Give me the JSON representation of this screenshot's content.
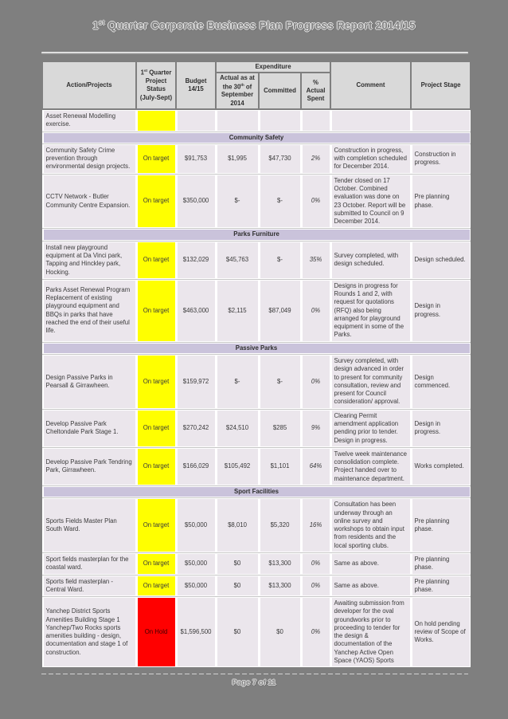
{
  "page": {
    "background": "#7F7F7F",
    "title": {
      "num": "1",
      "sup": "st",
      "rest": " Quarter Corporate Business Plan Progress Report 2014/15"
    },
    "footer": {
      "page_label": "Page 7 of 11"
    }
  },
  "colors": {
    "page_bg": "#7F7F7F",
    "header_cell_bg": "#D9D9D9",
    "row_bg": "#EBE6EC",
    "section_bg": "#CAC3DB",
    "on_target_bg": "#FFFF00",
    "on_hold_bg": "#FF0000"
  },
  "table": {
    "header": {
      "action": "Action/Projects",
      "status_num": "1",
      "status_sup": "st",
      "status_rest": " Quarter Project Status (July-Sept)",
      "budget": "Budget 14/15",
      "expenditure": "Expenditure",
      "actual_pre": "Actual as at the 30",
      "actual_sup": "th",
      "actual_rest": " of September 2014",
      "committed": "Committed",
      "pct": "% Actual Spent",
      "comment": "Comment",
      "stage": "Project Stage"
    },
    "rows": [
      {
        "type": "row",
        "action": "Asset Renewal Modelling exercise.",
        "status": "",
        "status_bg": "#FFFF00",
        "budget": "",
        "actual": "",
        "committed": "",
        "pct": "",
        "comment": "",
        "stage": ""
      },
      {
        "type": "section",
        "label": "Community Safety"
      },
      {
        "type": "row",
        "action": "Community Safety Crime prevention through environmental design projects.",
        "status": "On target",
        "status_bg": "#FFFF00",
        "budget": "$91,753",
        "actual": "$1,995",
        "committed": "$47,730",
        "pct": "2%",
        "comment": "Construction in progress, with completion scheduled for December 2014.",
        "stage": "Construction in progress."
      },
      {
        "type": "row",
        "action": "CCTV Network - Butler Community Centre Expansion.",
        "status": "On target",
        "status_bg": "#FFFF00",
        "budget": "$350,000",
        "actual": "$-",
        "committed": "$-",
        "pct": "0%",
        "comment": "Tender closed on 17 October.  Combined evaluation was done on 23 October.  Report will be submitted to Council on 9 December 2014.",
        "stage": "Pre planning phase."
      },
      {
        "type": "section",
        "label": "Parks Furniture"
      },
      {
        "type": "row",
        "action": "Install new playground equipment at Da Vinci park, Tapping and Hinckley park, Hocking.",
        "status": "On target",
        "status_bg": "#FFFF00",
        "budget": "$132,029",
        "actual": "$45,763",
        "committed": "$-",
        "pct": "35%",
        "comment": "Survey completed, with design scheduled.",
        "stage": "Design scheduled."
      },
      {
        "type": "row",
        "action": "Parks Asset Renewal Program Replacement of existing playground equipment and BBQs in parks that have reached the end of their useful life.",
        "status": "On target",
        "status_bg": "#FFFF00",
        "budget": "$463,000",
        "actual": "$2,115",
        "committed": "$87,049",
        "pct": "0%",
        "comment": "Designs in progress for Rounds 1 and 2, with request for quotations (RFQ) also being arranged for playground equipment in some of the Parks.",
        "stage": "Design in progress."
      },
      {
        "type": "section",
        "label": "Passive Parks"
      },
      {
        "type": "row",
        "action": "Design Passive Parks in Pearsall & Girrawheen.",
        "status": "On target",
        "status_bg": "#FFFF00",
        "budget": "$159,972",
        "actual": "$-",
        "committed": "$-",
        "pct": "0%",
        "comment": "Survey completed, with design advanced in order to present for community consultation, review and present for Council consideration/ approval.",
        "stage": "Design commenced."
      },
      {
        "type": "row",
        "action": "Develop Passive Park Cheltondale Park Stage 1.",
        "status": "On target",
        "status_bg": "#FFFF00",
        "budget": "$270,242",
        "actual": "$24,510",
        "committed": "$285",
        "pct": "9%",
        "comment": "Clearing Permit amendment application pending prior to tender. Design in progress.",
        "stage": "Design in progress."
      },
      {
        "type": "row",
        "action": "Develop Passive Park Tendring Park, Girrawheen.",
        "status": "On target",
        "status_bg": "#FFFF00",
        "budget": "$166,029",
        "actual": "$105,492",
        "committed": "$1,101",
        "pct": "64%",
        "comment": "Twelve week maintenance consolidation complete. Project handed over to maintenance department.",
        "stage": "Works completed."
      },
      {
        "type": "section",
        "label": "Sport Facilities"
      },
      {
        "type": "row",
        "action": "Sports Fields Master Plan South Ward.",
        "status": "On target",
        "status_bg": "#FFFF00",
        "budget": "$50,000",
        "actual": "$8,010",
        "committed": "$5,320",
        "pct": "16%",
        "comment": "Consultation has been underway through an online survey and workshops to obtain input from residents and the local sporting clubs.",
        "stage": "Pre planning phase."
      },
      {
        "type": "row",
        "action": "Sport fields masterplan for the coastal ward.",
        "status": "On target",
        "status_bg": "#FFFF00",
        "budget": "$50,000",
        "actual": "$0",
        "committed": "$13,300",
        "pct": "0%",
        "comment": "Same as above.",
        "stage": "Pre planning phase."
      },
      {
        "type": "row",
        "action": "Sports field masterplan - Central Ward.",
        "status": "On target",
        "status_bg": "#FFFF00",
        "budget": "$50,000",
        "actual": "$0",
        "committed": "$13,300",
        "pct": "0%",
        "comment": "Same as above.",
        "stage": "Pre planning phase."
      },
      {
        "type": "row",
        "action": "Yanchep District Sports Amenities Building Stage 1 Yanchep/Two Rocks sports amenities building - design, documentation and stage 1 of construction.",
        "status": "On Hold",
        "status_bg": "#FF0000",
        "budget": "$1,596,500",
        "actual": "$0",
        "committed": "$0",
        "pct": "0%",
        "comment": "Awaiting submission from developer for the oval groundworks prior to proceeding to tender for the design & documentation of the Yanchep Active Open Space (YAOS) Sports",
        "stage": "On hold pending review of Scope of Works."
      }
    ]
  }
}
